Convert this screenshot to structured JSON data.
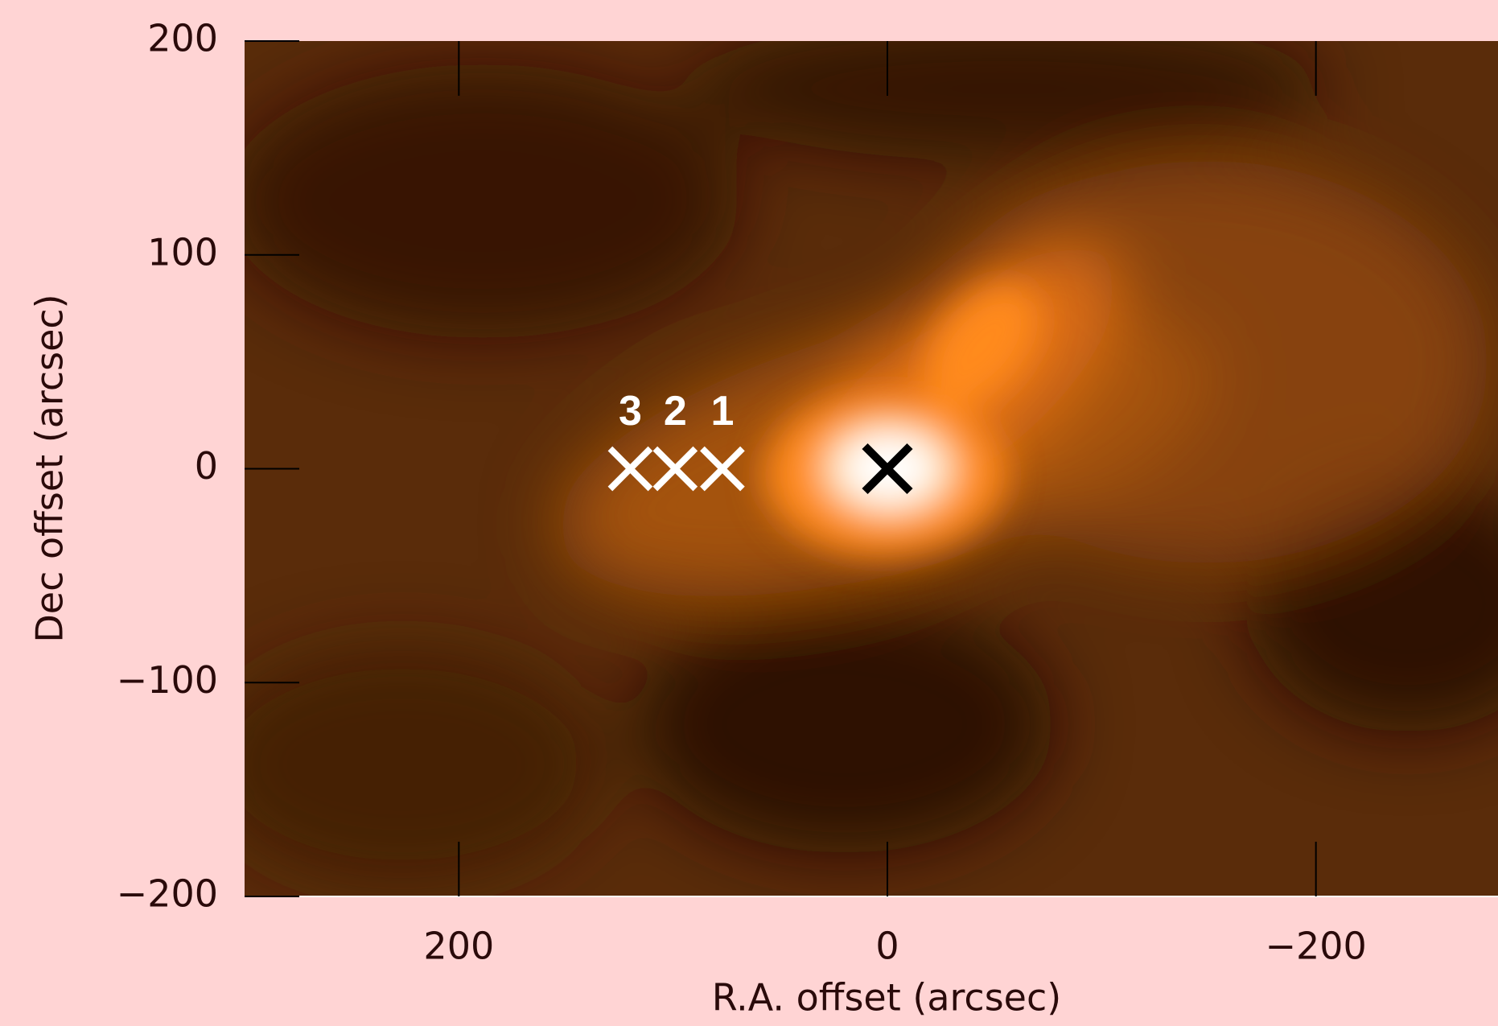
{
  "chart_data": {
    "type": "image",
    "xlabel": "R.A. offset (arcsec)",
    "ylabel": "Dec offset (arcsec)",
    "xlim": [
      300,
      -300
    ],
    "ylim": [
      -200,
      200
    ],
    "xticks": [
      200,
      0,
      {
        "value": -200,
        "label": "−200"
      }
    ],
    "yticks": [
      {
        "value": -200,
        "label": "−200"
      },
      {
        "value": -100,
        "label": "−100"
      },
      0,
      100,
      200
    ],
    "markers": [
      {
        "x": 0,
        "y": 0,
        "color": "#000000"
      },
      {
        "x": 77,
        "y": 0,
        "label": "1",
        "color": "#ffffff"
      },
      {
        "x": 99,
        "y": 0,
        "label": "2",
        "color": "#ffffff"
      },
      {
        "x": 120,
        "y": 0,
        "label": "3",
        "color": "#ffffff"
      }
    ]
  }
}
